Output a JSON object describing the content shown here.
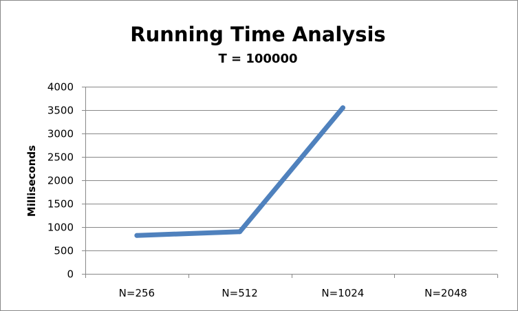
{
  "chart_data": {
    "type": "line",
    "title": "Running Time Analysis",
    "subtitle": "T = 100000",
    "xlabel": "",
    "ylabel": "Milliseconds",
    "categories": [
      "N=256",
      "N=512",
      "N=1024",
      "N=2048"
    ],
    "series": [
      {
        "values": [
          820,
          900,
          3550,
          null
        ]
      }
    ],
    "ylim": [
      0,
      4000
    ],
    "yticks": [
      "0",
      "500",
      "1000",
      "1500",
      "2000",
      "2500",
      "3000",
      "3500",
      "4000"
    ],
    "grid": true,
    "legend": "none",
    "colors": {
      "series": "#4F81BD",
      "grid": "#878787",
      "frame": "#878787"
    }
  }
}
